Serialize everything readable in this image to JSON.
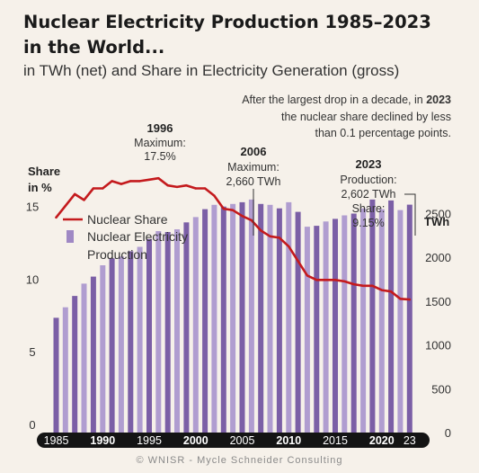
{
  "title_line1": "Nuclear Electricity Production 1985–2023",
  "title_line2": "in the World...",
  "subtitle": "in TWh (net) and Share in Electricity Generation (gross)",
  "credit": "© WNISR - Mycle Schneider Consulting",
  "colors": {
    "background": "#f6f1ea",
    "bar_odd": "#7b5fa6",
    "bar_even": "#b09dd0",
    "line": "#c41a1d",
    "axis_band": "#141414"
  },
  "chart_data": {
    "type": "bar+line",
    "x": [
      1985,
      1986,
      1987,
      1988,
      1989,
      1990,
      1991,
      1992,
      1993,
      1994,
      1995,
      1996,
      1997,
      1998,
      1999,
      2000,
      2001,
      2002,
      2003,
      2004,
      2005,
      2006,
      2007,
      2008,
      2009,
      2010,
      2011,
      2012,
      2013,
      2014,
      2015,
      2016,
      2017,
      2018,
      2019,
      2020,
      2021,
      2022,
      2023
    ],
    "x_tick_labels": [
      "1985",
      "1990",
      "1995",
      "2000",
      "2005",
      "2010",
      "2015",
      "2020",
      "23"
    ],
    "x_tick_years": [
      1985,
      1990,
      1995,
      2000,
      2005,
      2010,
      2015,
      2020,
      2023
    ],
    "x_tick_bold": [
      false,
      true,
      false,
      true,
      false,
      true,
      false,
      true,
      false
    ],
    "series": [
      {
        "name": "Nuclear Electricity Production",
        "type": "bar",
        "axis": "right",
        "values": [
          1310,
          1430,
          1560,
          1700,
          1780,
          1910,
          1990,
          2010,
          2070,
          2120,
          2210,
          2300,
          2290,
          2320,
          2400,
          2460,
          2550,
          2600,
          2580,
          2610,
          2630,
          2660,
          2610,
          2600,
          2560,
          2630,
          2520,
          2350,
          2360,
          2410,
          2440,
          2480,
          2500,
          2560,
          2660,
          2550,
          2650,
          2540,
          2602
        ]
      },
      {
        "name": "Nuclear Share",
        "type": "line",
        "axis": "left",
        "values": [
          14.8,
          15.6,
          16.4,
          16.0,
          16.8,
          16.8,
          17.3,
          17.1,
          17.3,
          17.3,
          17.4,
          17.5,
          17.0,
          16.9,
          17.0,
          16.8,
          16.8,
          16.3,
          15.4,
          15.3,
          14.9,
          14.6,
          13.9,
          13.5,
          13.4,
          12.8,
          11.8,
          10.8,
          10.5,
          10.5,
          10.5,
          10.4,
          10.2,
          10.1,
          10.1,
          9.8,
          9.7,
          9.2,
          9.15
        ]
      }
    ],
    "y_left": {
      "label_line1": "Share",
      "label_line2": "in %",
      "ticks": [
        0,
        5,
        10,
        15
      ],
      "range": [
        0,
        18.5
      ]
    },
    "y_right": {
      "label": "TWh",
      "ticks": [
        0,
        500,
        1000,
        1500,
        2000,
        2500
      ],
      "range": [
        0,
        3070
      ]
    },
    "legend": [
      "Nuclear Share",
      "Nuclear Electricity",
      "Production"
    ],
    "annotations": {
      "a1996": {
        "year": "1996",
        "line1": "Maximum:",
        "line2": "17.5%"
      },
      "a2006": {
        "year": "2006",
        "line1": "Maximum:",
        "line2": "2,660 TWh"
      },
      "a2023": {
        "year": "2023",
        "line1": "Production:",
        "line2": "2,602 TWh",
        "line3": "Share:",
        "line4": "9.15%"
      },
      "note": {
        "line1_prefix": "After the largest drop in a decade, in ",
        "line1_year": "2023",
        "line2": "the nuclear share declined by less",
        "line3": "than 0.1 percentage points."
      }
    }
  }
}
